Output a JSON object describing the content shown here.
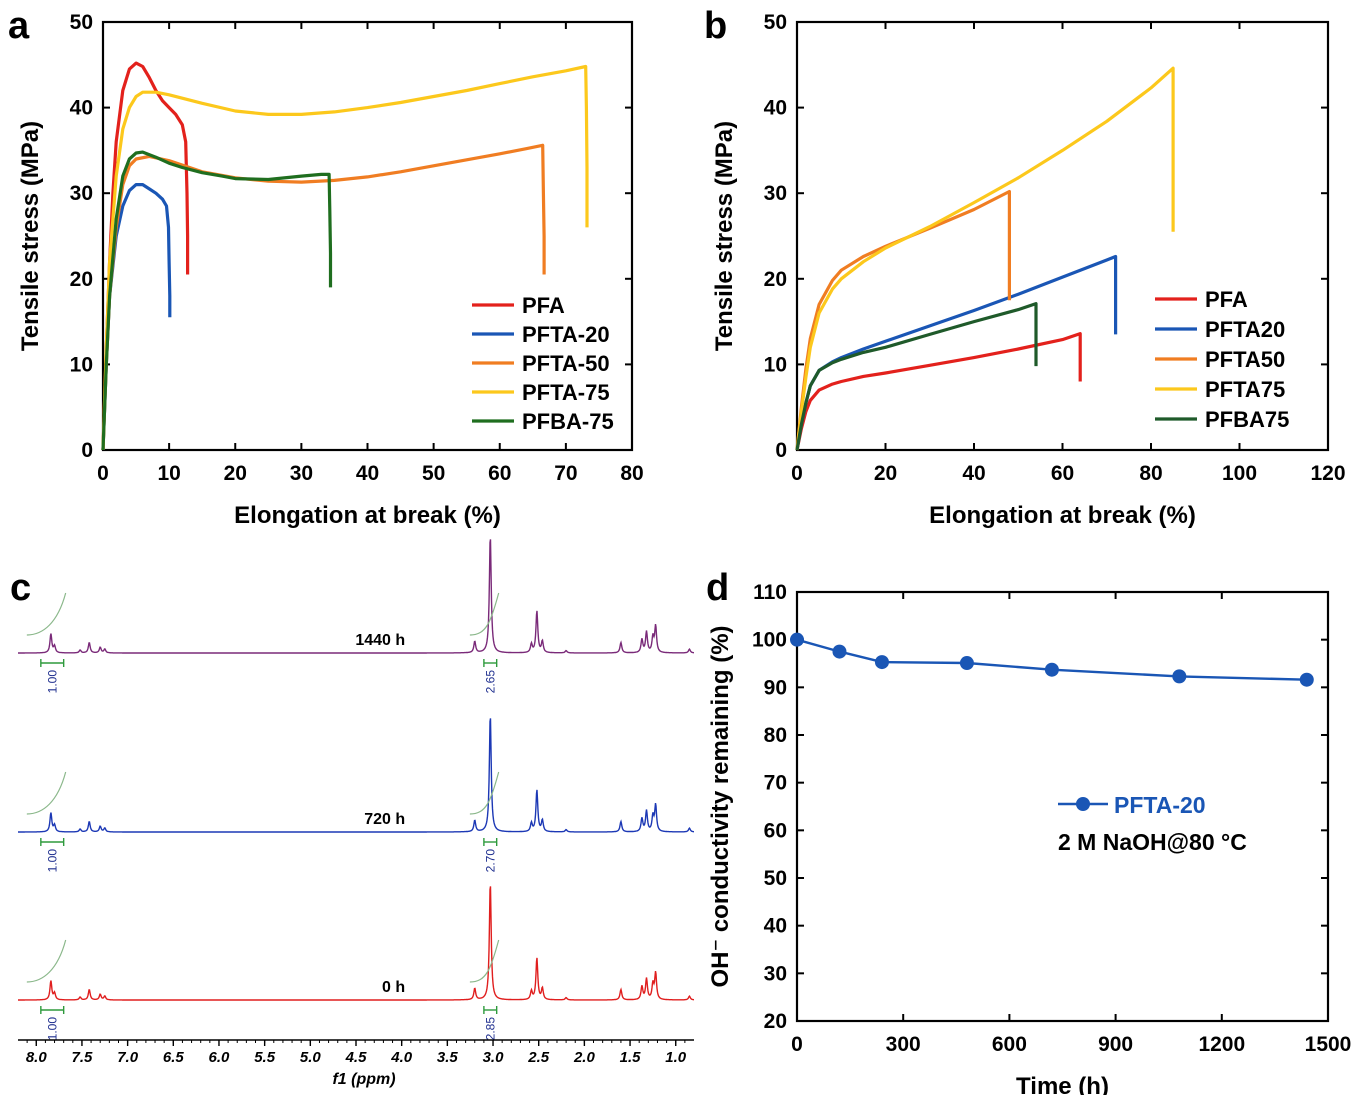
{
  "panels": {
    "a": {
      "letter": "a"
    },
    "b": {
      "letter": "b"
    },
    "c": {
      "letter": "c"
    },
    "d": {
      "letter": "d"
    }
  },
  "chart_data": [
    {
      "panel": "a",
      "type": "line",
      "title": "",
      "xlabel": "Elongation at break (%)",
      "ylabel": "Tensile stress (MPa)",
      "xlim": [
        0,
        80
      ],
      "ylim": [
        0,
        50
      ],
      "xticks": [
        0,
        10,
        20,
        30,
        40,
        50,
        60,
        70,
        80
      ],
      "yticks": [
        0,
        10,
        20,
        30,
        40,
        50
      ],
      "legend_position": "bottom-right",
      "series": [
        {
          "name": "PFA",
          "color": "#e3211c",
          "points": [
            [
              0,
              0
            ],
            [
              0.5,
              12
            ],
            [
              1,
              22
            ],
            [
              1.5,
              30
            ],
            [
              2,
              36
            ],
            [
              3,
              42
            ],
            [
              4,
              44.5
            ],
            [
              5,
              45.2
            ],
            [
              6,
              44.8
            ],
            [
              7,
              43.5
            ],
            [
              8,
              42
            ],
            [
              9,
              40.8
            ],
            [
              10,
              40
            ],
            [
              11,
              39.2
            ],
            [
              12,
              38
            ],
            [
              12.5,
              36
            ],
            [
              12.7,
              30
            ],
            [
              12.8,
              25
            ],
            [
              12.8,
              20.5
            ]
          ]
        },
        {
          "name": "PFTA-20",
          "color": "#1a56b5",
          "points": [
            [
              0,
              0
            ],
            [
              0.5,
              10
            ],
            [
              1,
              18
            ],
            [
              2,
              25
            ],
            [
              3,
              28.5
            ],
            [
              4,
              30.3
            ],
            [
              5,
              31
            ],
            [
              6,
              31
            ],
            [
              7,
              30.5
            ],
            [
              8,
              30
            ],
            [
              9,
              29.3
            ],
            [
              9.6,
              28.5
            ],
            [
              9.9,
              26
            ],
            [
              10,
              22
            ],
            [
              10.1,
              18
            ],
            [
              10.1,
              15.5
            ]
          ]
        },
        {
          "name": "PFTA-50",
          "color": "#f07d22",
          "points": [
            [
              0,
              0
            ],
            [
              0.5,
              10
            ],
            [
              1,
              18
            ],
            [
              2,
              26
            ],
            [
              3,
              31
            ],
            [
              4,
              33.2
            ],
            [
              5,
              34
            ],
            [
              7,
              34.3
            ],
            [
              10,
              33.8
            ],
            [
              15,
              32.5
            ],
            [
              20,
              31.8
            ],
            [
              25,
              31.4
            ],
            [
              30,
              31.3
            ],
            [
              35,
              31.5
            ],
            [
              40,
              31.9
            ],
            [
              45,
              32.5
            ],
            [
              50,
              33.2
            ],
            [
              55,
              33.9
            ],
            [
              60,
              34.6
            ],
            [
              64,
              35.2
            ],
            [
              66.5,
              35.6
            ],
            [
              66.6,
              30
            ],
            [
              66.7,
              25
            ],
            [
              66.7,
              20.5
            ]
          ]
        },
        {
          "name": "PFTA-75",
          "color": "#fcc81c",
          "points": [
            [
              0,
              0
            ],
            [
              0.5,
              12
            ],
            [
              1,
              22
            ],
            [
              2,
              32
            ],
            [
              3,
              37.5
            ],
            [
              4,
              40
            ],
            [
              5,
              41.3
            ],
            [
              6,
              41.8
            ],
            [
              8,
              41.8
            ],
            [
              10,
              41.5
            ],
            [
              15,
              40.5
            ],
            [
              20,
              39.6
            ],
            [
              25,
              39.2
            ],
            [
              30,
              39.2
            ],
            [
              35,
              39.5
            ],
            [
              40,
              40
            ],
            [
              45,
              40.6
            ],
            [
              50,
              41.3
            ],
            [
              55,
              42
            ],
            [
              60,
              42.8
            ],
            [
              65,
              43.6
            ],
            [
              70,
              44.3
            ],
            [
              73,
              44.8
            ],
            [
              73.1,
              40
            ],
            [
              73.2,
              33
            ],
            [
              73.2,
              26
            ]
          ]
        },
        {
          "name": "PFBA-75",
          "color": "#1f6e1f",
          "points": [
            [
              0,
              0
            ],
            [
              0.5,
              10
            ],
            [
              1,
              18
            ],
            [
              2,
              27
            ],
            [
              3,
              32
            ],
            [
              4,
              34
            ],
            [
              5,
              34.7
            ],
            [
              6,
              34.8
            ],
            [
              8,
              34.2
            ],
            [
              10,
              33.5
            ],
            [
              12,
              33
            ],
            [
              15,
              32.4
            ],
            [
              18,
              32
            ],
            [
              20,
              31.7
            ],
            [
              25,
              31.6
            ],
            [
              30,
              32
            ],
            [
              33,
              32.2
            ],
            [
              34.2,
              32.2
            ],
            [
              34.3,
              28
            ],
            [
              34.4,
              23
            ],
            [
              34.4,
              19
            ]
          ]
        }
      ]
    },
    {
      "panel": "b",
      "type": "line",
      "title": "",
      "xlabel": "Elongation at break (%)",
      "ylabel": "Tensile stress (MPa)",
      "xlim": [
        0,
        120
      ],
      "ylim": [
        0,
        50
      ],
      "xticks": [
        0,
        20,
        40,
        60,
        80,
        100,
        120
      ],
      "yticks": [
        0,
        10,
        20,
        30,
        40,
        50
      ],
      "legend_position": "right",
      "series": [
        {
          "name": "PFA",
          "color": "#e3211c",
          "points": [
            [
              0,
              0
            ],
            [
              1,
              2.5
            ],
            [
              2,
              4.5
            ],
            [
              3,
              5.8
            ],
            [
              5,
              7
            ],
            [
              8,
              7.7
            ],
            [
              10,
              8
            ],
            [
              15,
              8.6
            ],
            [
              20,
              9
            ],
            [
              30,
              9.9
            ],
            [
              40,
              10.8
            ],
            [
              50,
              11.8
            ],
            [
              60,
              12.9
            ],
            [
              64,
              13.6
            ],
            [
              64,
              11
            ],
            [
              64,
              8
            ]
          ]
        },
        {
          "name": "PFTA20",
          "color": "#1a56b5",
          "points": [
            [
              0,
              0
            ],
            [
              1,
              3
            ],
            [
              2,
              5.5
            ],
            [
              3,
              7.5
            ],
            [
              5,
              9.3
            ],
            [
              8,
              10.3
            ],
            [
              10,
              10.8
            ],
            [
              15,
              11.8
            ],
            [
              20,
              12.7
            ],
            [
              30,
              14.5
            ],
            [
              40,
              16.3
            ],
            [
              50,
              18.2
            ],
            [
              60,
              20.2
            ],
            [
              70,
              22.2
            ],
            [
              72,
              22.6
            ],
            [
              72,
              18
            ],
            [
              72,
              13.5
            ]
          ]
        },
        {
          "name": "PFTA50",
          "color": "#f07d22",
          "points": [
            [
              0,
              0
            ],
            [
              1,
              5
            ],
            [
              2,
              9.5
            ],
            [
              3,
              13
            ],
            [
              5,
              17
            ],
            [
              8,
              19.8
            ],
            [
              10,
              21
            ],
            [
              15,
              22.6
            ],
            [
              20,
              23.8
            ],
            [
              30,
              25.9
            ],
            [
              40,
              28.1
            ],
            [
              48,
              30.2
            ],
            [
              48,
              24
            ],
            [
              48,
              17.5
            ]
          ]
        },
        {
          "name": "PFTA75",
          "color": "#fcc81c",
          "points": [
            [
              0,
              0
            ],
            [
              1,
              4.5
            ],
            [
              2,
              8.5
            ],
            [
              3,
              12
            ],
            [
              5,
              16
            ],
            [
              8,
              18.8
            ],
            [
              10,
              20
            ],
            [
              15,
              22
            ],
            [
              20,
              23.6
            ],
            [
              30,
              26.1
            ],
            [
              40,
              28.9
            ],
            [
              50,
              31.8
            ],
            [
              60,
              35
            ],
            [
              70,
              38.4
            ],
            [
              80,
              42.3
            ],
            [
              85,
              44.6
            ],
            [
              85,
              35
            ],
            [
              85,
              25.5
            ]
          ]
        },
        {
          "name": "PFBA75",
          "color": "#1f5a2a",
          "points": [
            [
              0,
              0
            ],
            [
              1,
              3
            ],
            [
              2,
              5.5
            ],
            [
              3,
              7.5
            ],
            [
              5,
              9.3
            ],
            [
              8,
              10.2
            ],
            [
              10,
              10.6
            ],
            [
              15,
              11.4
            ],
            [
              20,
              12
            ],
            [
              30,
              13.5
            ],
            [
              40,
              15
            ],
            [
              50,
              16.4
            ],
            [
              54,
              17.1
            ],
            [
              54,
              14
            ],
            [
              54,
              9.8
            ]
          ]
        }
      ]
    },
    {
      "panel": "c",
      "type": "line",
      "title": "",
      "xlabel": "f1 (ppm)",
      "ylabel": "",
      "xlim": [
        8.2,
        0.8
      ],
      "xticks": [
        8.0,
        7.5,
        7.0,
        6.5,
        6.0,
        5.5,
        5.0,
        4.5,
        4.0,
        3.5,
        3.0,
        2.5,
        2.0,
        1.5,
        1.0
      ],
      "xtick_labels": [
        "8.0",
        "7.5",
        "7.0",
        "6.5",
        "6.0",
        "5.5",
        "5.0",
        "4.5",
        "4.0",
        "3.5",
        "3.0",
        "2.5",
        "2.0",
        "1.5",
        "1.0"
      ],
      "integral_regions": [
        [
          7.95,
          7.7
        ],
        [
          3.1,
          2.96
        ]
      ],
      "peaks": [
        {
          "ppm": 7.84,
          "height": 1.0
        },
        {
          "ppm": 7.8,
          "height": 0.35
        },
        {
          "ppm": 7.52,
          "height": 0.15
        },
        {
          "ppm": 7.42,
          "height": 0.55
        },
        {
          "ppm": 7.3,
          "height": 0.3
        },
        {
          "ppm": 7.25,
          "height": 0.2
        },
        {
          "ppm": 3.2,
          "height": 0.6
        },
        {
          "ppm": 3.03,
          "height": 6.2
        },
        {
          "ppm": 2.58,
          "height": 0.45
        },
        {
          "ppm": 2.52,
          "height": 2.2
        },
        {
          "ppm": 2.46,
          "height": 0.6
        },
        {
          "ppm": 2.2,
          "height": 0.12
        },
        {
          "ppm": 1.6,
          "height": 0.55
        },
        {
          "ppm": 1.37,
          "height": 0.7
        },
        {
          "ppm": 1.32,
          "height": 1.1
        },
        {
          "ppm": 1.25,
          "height": 0.8
        },
        {
          "ppm": 1.22,
          "height": 1.4
        },
        {
          "ppm": 0.85,
          "height": 0.2
        }
      ],
      "series": [
        {
          "name": "1440 h",
          "color": "#7a2a79",
          "integrals": [
            "1.00",
            "2.65"
          ]
        },
        {
          "name": "720 h",
          "color": "#1c38b5",
          "integrals": [
            "1.00",
            "2.70"
          ]
        },
        {
          "name": "0 h",
          "color": "#e01e1e",
          "integrals": [
            "1.00",
            "2.85"
          ]
        }
      ]
    },
    {
      "panel": "d",
      "type": "line",
      "title": "",
      "xlabel": "Time (h)",
      "ylabel": "OH⁻ conductivity remaining (%)",
      "xlim": [
        0,
        1500
      ],
      "ylim": [
        20,
        110
      ],
      "xticks": [
        0,
        300,
        600,
        900,
        1200,
        1500
      ],
      "yticks": [
        20,
        30,
        40,
        50,
        60,
        70,
        80,
        90,
        100,
        110
      ],
      "legend_position": "center-right",
      "annotation": "2 M NaOH@80 °C",
      "series": [
        {
          "name": "PFTA-20",
          "color": "#1a56b5",
          "x": [
            0,
            120,
            240,
            480,
            720,
            1080,
            1440
          ],
          "values": [
            100,
            97.5,
            95.3,
            95.1,
            93.7,
            92.3,
            91.6
          ]
        }
      ]
    }
  ]
}
